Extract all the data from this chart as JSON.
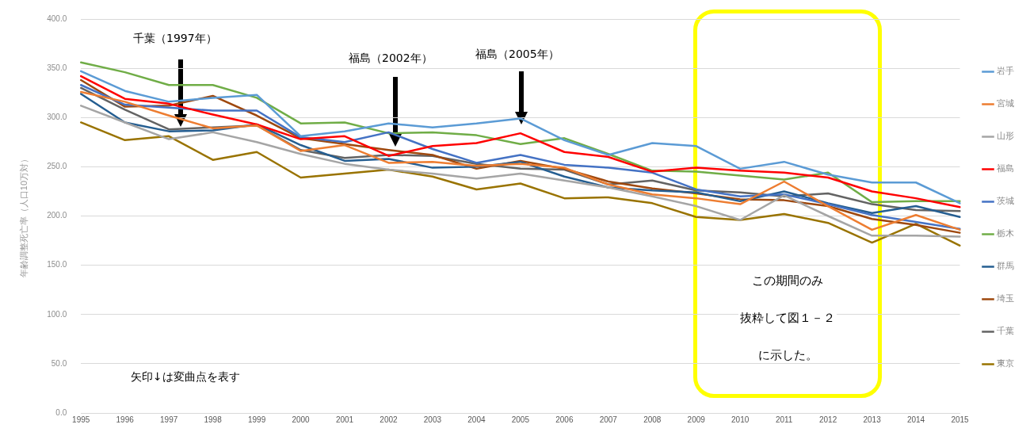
{
  "chart_data": {
    "type": "line",
    "ylabel": "年齢調整死亡率（人口10万対）",
    "categories": [
      "1995",
      "1996",
      "1997",
      "1998",
      "1999",
      "2000",
      "2001",
      "2002",
      "2003",
      "2004",
      "2005",
      "2006",
      "2007",
      "2008",
      "2009",
      "2010",
      "2011",
      "2012",
      "2013",
      "2014",
      "2015"
    ],
    "series": [
      {
        "name": "岩手",
        "color": "#5b9bd5",
        "values": [
          347,
          327,
          316,
          320,
          323,
          281,
          286,
          294,
          290,
          294,
          299,
          277,
          262,
          274,
          271,
          248,
          255,
          242,
          234,
          234,
          213
        ]
      },
      {
        "name": "宮城",
        "color": "#ed7d31",
        "values": [
          326,
          316,
          302,
          289,
          292,
          266,
          272,
          254,
          255,
          251,
          253,
          249,
          232,
          222,
          218,
          212,
          235,
          210,
          186,
          201,
          186
        ]
      },
      {
        "name": "山形",
        "color": "#a5a5a5",
        "values": [
          312,
          295,
          278,
          285,
          275,
          263,
          253,
          247,
          243,
          238,
          243,
          236,
          229,
          220,
          210,
          196,
          221,
          200,
          180,
          180,
          179
        ]
      },
      {
        "name": "福島",
        "color": "#ff0000",
        "values": [
          342,
          319,
          314,
          303,
          293,
          278,
          281,
          261,
          271,
          274,
          284,
          265,
          260,
          245,
          249,
          246,
          244,
          239,
          225,
          218,
          209
        ]
      },
      {
        "name": "茨城",
        "color": "#4472c4",
        "values": [
          333,
          313,
          310,
          307,
          307,
          280,
          275,
          285,
          268,
          254,
          262,
          252,
          249,
          244,
          227,
          220,
          222,
          212,
          201,
          194,
          187
        ]
      },
      {
        "name": "栃木",
        "color": "#70ad47",
        "values": [
          356,
          346,
          333,
          333,
          320,
          294,
          295,
          284,
          285,
          282,
          273,
          279,
          263,
          246,
          245,
          241,
          237,
          244,
          214,
          215,
          215
        ]
      },
      {
        "name": "群馬",
        "color": "#255e91",
        "values": [
          324,
          295,
          286,
          287,
          293,
          272,
          256,
          258,
          249,
          250,
          255,
          240,
          229,
          226,
          224,
          215,
          225,
          213,
          203,
          210,
          199
        ]
      },
      {
        "name": "埼玉",
        "color": "#9e480e",
        "values": [
          338,
          311,
          312,
          322,
          302,
          279,
          273,
          267,
          262,
          248,
          256,
          248,
          235,
          228,
          223,
          217,
          216,
          210,
          197,
          191,
          183
        ]
      },
      {
        "name": "千葉",
        "color": "#636363",
        "values": [
          330,
          308,
          288,
          290,
          292,
          267,
          259,
          262,
          261,
          253,
          248,
          247,
          232,
          236,
          226,
          224,
          220,
          223,
          212,
          206,
          205
        ]
      },
      {
        "name": "東京",
        "color": "#997300",
        "values": [
          295,
          277,
          281,
          257,
          265,
          239,
          243,
          247,
          240,
          227,
          233,
          218,
          219,
          213,
          199,
          196,
          202,
          193,
          173,
          192,
          170
        ]
      }
    ],
    "ylim": [
      0,
      400
    ],
    "yticks": [
      {
        "value": 0,
        "label": "0.0"
      },
      {
        "value": 50,
        "label": "50.0"
      },
      {
        "value": 100,
        "label": "100.0"
      },
      {
        "value": 150,
        "label": "150.0"
      },
      {
        "value": 200,
        "label": "200.0"
      },
      {
        "value": 250,
        "label": "250.0"
      },
      {
        "value": 300,
        "label": "300.0"
      },
      {
        "value": 350,
        "label": "350.0"
      },
      {
        "value": 400,
        "label": "400.0"
      }
    ],
    "grid": "y",
    "legend": "right",
    "marker": "none",
    "line_style": "solid",
    "annotations": [
      "千葉（1997年）",
      "福島（2002年）",
      "福島（2005年）",
      "矢印↓は変曲点を表す",
      "この期間のみ",
      "抜粋して図１－２",
      "に示した。"
    ]
  }
}
